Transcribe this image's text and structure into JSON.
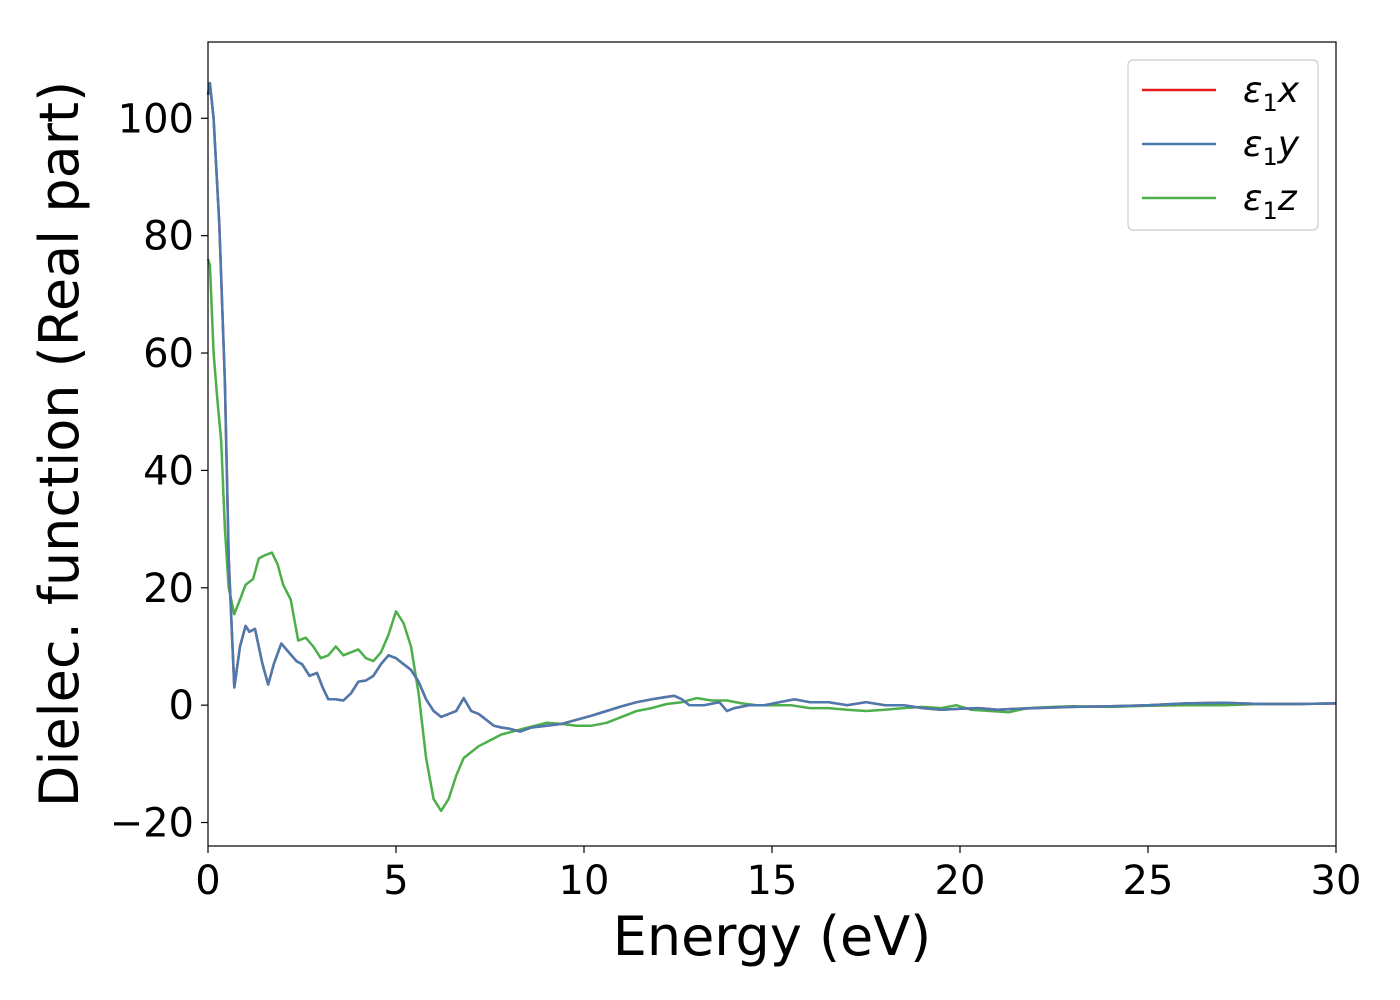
{
  "chart_data": {
    "type": "line",
    "title": "",
    "xlabel": "Energy (eV)",
    "ylabel": "Dielec. function (Real part)",
    "xlim": [
      0,
      30
    ],
    "ylim": [
      -24,
      113
    ],
    "xticks": [
      0,
      5,
      10,
      15,
      20,
      25,
      30
    ],
    "yticks": [
      -20,
      0,
      20,
      40,
      60,
      80,
      100
    ],
    "xtick_labels": [
      "0",
      "5",
      "10",
      "15",
      "20",
      "25",
      "30"
    ],
    "ytick_labels": [
      "−20",
      "0",
      "20",
      "40",
      "60",
      "80",
      "100"
    ],
    "grid": false,
    "legend_position": "top-right",
    "series": [
      {
        "name": "ε₁x",
        "legend_main": "ε",
        "legend_sub": "1",
        "legend_suffix": "x",
        "color": "#e41a1c",
        "x": [
          0,
          0.05,
          0.15,
          0.3,
          0.45,
          0.55,
          0.7,
          0.85,
          1.0,
          1.1,
          1.25,
          1.45,
          1.6,
          1.75,
          1.95,
          2.15,
          2.35,
          2.5,
          2.7,
          2.9,
          3.05,
          3.2,
          3.4,
          3.6,
          3.8,
          4.0,
          4.2,
          4.4,
          4.6,
          4.8,
          5.0,
          5.2,
          5.4,
          5.6,
          5.8,
          6.0,
          6.2,
          6.4,
          6.6,
          6.8,
          7.0,
          7.2,
          7.4,
          7.6,
          7.8,
          8.0,
          8.3,
          8.6,
          9.0,
          9.4,
          9.8,
          10.2,
          10.6,
          11.0,
          11.4,
          11.8,
          12.2,
          12.4,
          12.6,
          12.8,
          13.2,
          13.6,
          13.8,
          14.0,
          14.4,
          14.8,
          15.2,
          15.6,
          16.0,
          16.5,
          17.0,
          17.5,
          18.0,
          18.5,
          19.0,
          19.5,
          20.0,
          20.5,
          21.0,
          21.5,
          22.0,
          23.0,
          24.0,
          25.0,
          26.0,
          27.0,
          28.0,
          29.0,
          30.0
        ],
        "values": [
          104,
          106,
          100,
          82,
          55,
          25,
          3,
          10,
          13.5,
          12.5,
          13,
          7,
          3.5,
          7,
          10.5,
          9,
          7.5,
          7,
          5,
          5.5,
          3,
          1,
          1,
          0.8,
          2,
          4,
          4.2,
          5,
          7,
          8.5,
          8,
          7,
          6,
          4,
          1,
          -1,
          -2,
          -1.5,
          -1,
          1.2,
          -1,
          -1.5,
          -2.5,
          -3.5,
          -3.8,
          -4,
          -4.5,
          -3.8,
          -3.5,
          -3.2,
          -2.5,
          -1.8,
          -1,
          -0.2,
          0.5,
          1,
          1.4,
          1.6,
          1,
          0,
          0,
          0.5,
          -1,
          -0.5,
          0,
          0,
          0.5,
          1,
          0.5,
          0.5,
          0,
          0.5,
          0,
          0,
          -0.5,
          -0.8,
          -0.6,
          -0.5,
          -0.8,
          -0.6,
          -0.5,
          -0.3,
          -0.2,
          0,
          0.3,
          0.4,
          0.2,
          0.2,
          0.3
        ]
      },
      {
        "name": "ε₁y",
        "legend_main": "ε",
        "legend_sub": "1",
        "legend_suffix": "y",
        "color": "#4a7bb0",
        "x": [
          0,
          0.05,
          0.15,
          0.3,
          0.45,
          0.55,
          0.7,
          0.85,
          1.0,
          1.1,
          1.25,
          1.45,
          1.6,
          1.75,
          1.95,
          2.15,
          2.35,
          2.5,
          2.7,
          2.9,
          3.05,
          3.2,
          3.4,
          3.6,
          3.8,
          4.0,
          4.2,
          4.4,
          4.6,
          4.8,
          5.0,
          5.2,
          5.4,
          5.6,
          5.8,
          6.0,
          6.2,
          6.4,
          6.6,
          6.8,
          7.0,
          7.2,
          7.4,
          7.6,
          7.8,
          8.0,
          8.3,
          8.6,
          9.0,
          9.4,
          9.8,
          10.2,
          10.6,
          11.0,
          11.4,
          11.8,
          12.2,
          12.4,
          12.6,
          12.8,
          13.2,
          13.6,
          13.8,
          14.0,
          14.4,
          14.8,
          15.2,
          15.6,
          16.0,
          16.5,
          17.0,
          17.5,
          18.0,
          18.5,
          19.0,
          19.5,
          20.0,
          20.5,
          21.0,
          21.5,
          22.0,
          23.0,
          24.0,
          25.0,
          26.0,
          27.0,
          28.0,
          29.0,
          30.0
        ],
        "values": [
          104,
          106,
          100,
          82,
          55,
          25,
          3,
          10,
          13.5,
          12.5,
          13,
          7,
          3.5,
          7,
          10.5,
          9,
          7.5,
          7,
          5,
          5.5,
          3,
          1,
          1,
          0.8,
          2,
          4,
          4.2,
          5,
          7,
          8.5,
          8,
          7,
          6,
          4,
          1,
          -1,
          -2,
          -1.5,
          -1,
          1.2,
          -1,
          -1.5,
          -2.5,
          -3.5,
          -3.8,
          -4,
          -4.5,
          -3.8,
          -3.5,
          -3.2,
          -2.5,
          -1.8,
          -1,
          -0.2,
          0.5,
          1,
          1.4,
          1.6,
          1,
          0,
          0,
          0.5,
          -1,
          -0.5,
          0,
          0,
          0.5,
          1,
          0.5,
          0.5,
          0,
          0.5,
          0,
          0,
          -0.5,
          -0.8,
          -0.6,
          -0.5,
          -0.8,
          -0.6,
          -0.5,
          -0.3,
          -0.2,
          0,
          0.3,
          0.4,
          0.2,
          0.2,
          0.3
        ]
      },
      {
        "name": "ε₁z",
        "legend_main": "ε",
        "legend_sub": "1",
        "legend_suffix": "z",
        "color": "#4daf4a",
        "x": [
          0,
          0.05,
          0.15,
          0.25,
          0.35,
          0.45,
          0.55,
          0.7,
          0.85,
          1.0,
          1.2,
          1.35,
          1.5,
          1.7,
          1.85,
          2.0,
          2.2,
          2.4,
          2.6,
          2.8,
          3.0,
          3.2,
          3.4,
          3.6,
          3.8,
          4.0,
          4.2,
          4.4,
          4.6,
          4.8,
          5.0,
          5.2,
          5.4,
          5.6,
          5.8,
          6.0,
          6.2,
          6.4,
          6.6,
          6.8,
          7.0,
          7.2,
          7.5,
          7.8,
          8.1,
          8.4,
          8.7,
          9.0,
          9.4,
          9.8,
          10.2,
          10.6,
          11.0,
          11.4,
          11.8,
          12.2,
          12.6,
          13.0,
          13.4,
          13.8,
          14.2,
          14.6,
          15.0,
          15.5,
          16.0,
          16.5,
          17.0,
          17.5,
          18.0,
          18.5,
          19.0,
          19.5,
          19.9,
          20.3,
          20.8,
          21.3,
          21.8,
          22.5,
          23.0,
          24.0,
          25.0,
          26.0,
          27.0,
          28.0,
          29.0,
          30.0
        ],
        "values": [
          76,
          75,
          60,
          52,
          45,
          30,
          20,
          15.5,
          18,
          20.5,
          21.5,
          25,
          25.5,
          26,
          24,
          20.5,
          18,
          11,
          11.5,
          10,
          8,
          8.5,
          10,
          8.5,
          9,
          9.5,
          8,
          7.5,
          9,
          12,
          16,
          14,
          10,
          2,
          -9,
          -16,
          -18,
          -16,
          -12,
          -9,
          -8,
          -7,
          -6,
          -5,
          -4.5,
          -4,
          -3.5,
          -3,
          -3.2,
          -3.5,
          -3.5,
          -3,
          -2,
          -1,
          -0.5,
          0.2,
          0.5,
          1.2,
          0.8,
          0.8,
          0.3,
          0,
          0,
          0,
          -0.5,
          -0.5,
          -0.8,
          -1,
          -0.8,
          -0.5,
          -0.3,
          -0.5,
          0,
          -0.8,
          -1,
          -1.2,
          -0.5,
          -0.3,
          -0.2,
          -0.3,
          -0.1,
          0,
          0,
          0.2,
          0.2,
          0.3
        ]
      }
    ]
  }
}
